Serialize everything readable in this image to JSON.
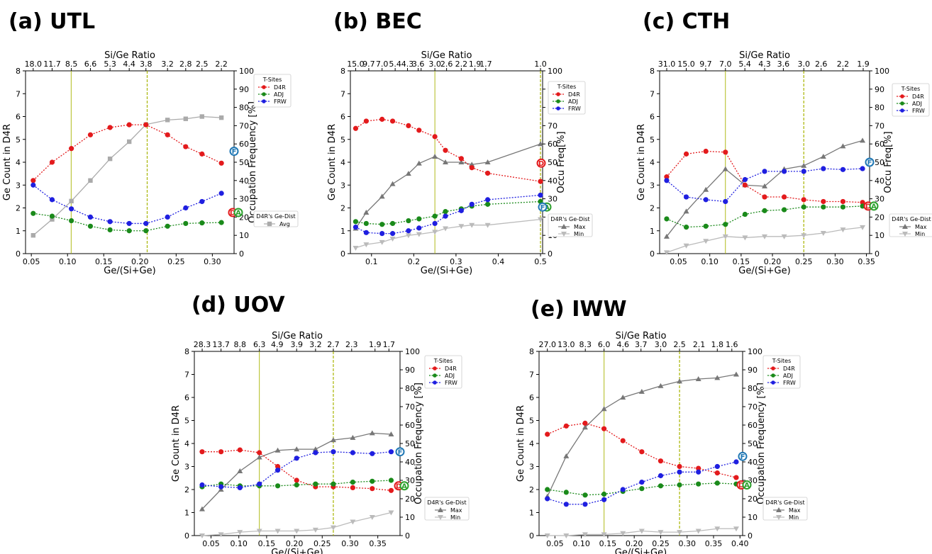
{
  "colors": {
    "D4R": "#e31a1c",
    "ADJ": "#1a8a1a",
    "FRW": "#1f1fe0",
    "Avg": "#aaaaaa",
    "Max": "#777777",
    "Min": "#bbbbbb",
    "vline": "#a8b400",
    "marker_F": "#1f77b4",
    "marker_A": "#2ca02c",
    "marker_D": "#e31a1c"
  },
  "end_markers": {
    "D": "D",
    "A": "A",
    "F": "F"
  },
  "chart_data": [
    {
      "panel": "(a)",
      "name": "UTL",
      "type": "line",
      "xlabel": "Ge/(Si+Ge)",
      "ylabel": "Ge Count in D4R",
      "y2label": "Occupation Frequency [%]",
      "toplabel": "Si/Ge Ratio",
      "xlim": [
        0.042,
        0.33
      ],
      "ylim": [
        0,
        8
      ],
      "y2lim": [
        0,
        100
      ],
      "xticks": [
        0.05,
        0.1,
        0.15,
        0.2,
        0.25,
        0.3
      ],
      "xticklabels": [
        "0.05",
        "0.10",
        "0.15",
        "0.20",
        "0.25",
        "0.30"
      ],
      "yticks": [
        0,
        1,
        2,
        3,
        4,
        5,
        6,
        7,
        8
      ],
      "y2ticks": [
        0,
        10,
        20,
        30,
        40,
        50,
        60,
        70,
        80,
        90,
        100
      ],
      "top_ticks_x": [
        0.0526,
        0.0787,
        0.1053,
        0.1316,
        0.1587,
        0.1852,
        0.2083,
        0.2381,
        0.2632,
        0.2857,
        0.3125
      ],
      "top_ticks": [
        "18.0",
        "11.7",
        "8.5",
        "6.6",
        "5.3",
        "4.4",
        "3.8",
        "3.2",
        "2.8",
        "2.5",
        "2.2"
      ],
      "vlines": [
        0.105,
        0.21
      ],
      "x": [
        0.0526,
        0.0787,
        0.1053,
        0.1316,
        0.1587,
        0.1852,
        0.2083,
        0.2381,
        0.2632,
        0.2857,
        0.3125
      ],
      "occupancy_series": [
        {
          "name": "D4R",
          "values": [
            40,
            50,
            57.5,
            65,
            69,
            70.5,
            70.5,
            65,
            58.5,
            54.5,
            49.5
          ]
        },
        {
          "name": "ADJ",
          "values": [
            22,
            20.5,
            18,
            15,
            13,
            12.5,
            12.5,
            15,
            16.5,
            16.8,
            17
          ]
        },
        {
          "name": "FRW",
          "values": [
            37.5,
            29.5,
            24.5,
            20,
            17.5,
            16.5,
            16.5,
            20,
            25,
            28.5,
            33
          ]
        }
      ],
      "count_series": [
        {
          "name": "Avg",
          "values": [
            0.8,
            1.5,
            2.3,
            3.2,
            4.15,
            4.9,
            5.65,
            5.85,
            5.9,
            6.0,
            5.95
          ]
        }
      ],
      "end_marker_values": {
        "D": 22.5,
        "A": 22.5,
        "F": 56
      },
      "legend_title": "T-Sites",
      "legend_entries": [
        "D4R",
        "ADJ",
        "FRW"
      ],
      "legend2_title": "D4R's Ge-Dist",
      "legend2_entries": [
        "Avg"
      ]
    },
    {
      "panel": "(b)",
      "name": "BEC",
      "type": "line",
      "xlabel": "Ge/(Si+Ge)",
      "ylabel": "Ge Count in D4R",
      "y2label": "Occu Freq[%]",
      "toplabel": "Si/Ge Ratio",
      "xlim": [
        0.05,
        0.505
      ],
      "ylim": [
        0,
        8
      ],
      "y2lim": [
        0,
        100
      ],
      "xticks": [
        0.1,
        0.2,
        0.3,
        0.4,
        0.5
      ],
      "xticklabels": [
        "0.1",
        "0.2",
        "0.3",
        "0.4",
        "0.5"
      ],
      "yticks": [
        0,
        1,
        2,
        3,
        4,
        5,
        6,
        7,
        8
      ],
      "y2ticks": [
        0,
        10,
        20,
        30,
        40,
        50,
        60,
        70,
        80,
        90,
        100
      ],
      "top_ticks_x": [
        0.0625,
        0.0935,
        0.125,
        0.156,
        0.1852,
        0.2105,
        0.2174,
        0.25,
        0.2777,
        0.3125,
        0.3448,
        0.3704,
        0.5
      ],
      "top_ticks": [
        "15.0",
        "9.7",
        "7.0",
        "5.4",
        "4.3",
        "3.6",
        "",
        "3.0",
        "2.6",
        "2.2",
        "1.9",
        "1.7",
        "1.0"
      ],
      "vlines": [
        0.25,
        0.5
      ],
      "x": [
        0.0625,
        0.0875,
        0.125,
        0.15,
        0.1875,
        0.2125,
        0.25,
        0.275,
        0.3125,
        0.3375,
        0.375,
        0.5
      ],
      "occupancy_series": [
        {
          "name": "D4R",
          "values": [
            68.5,
            72.5,
            73.5,
            72.5,
            70,
            67.5,
            64,
            56.5,
            52,
            47,
            44,
            39.5
          ]
        },
        {
          "name": "ADJ",
          "values": [
            17.5,
            16.5,
            16,
            16.5,
            18,
            19,
            20.5,
            23,
            24.5,
            26,
            27,
            28.5
          ]
        },
        {
          "name": "FRW",
          "values": [
            14.5,
            11.5,
            11,
            11,
            12.5,
            14,
            16.5,
            20.5,
            23.5,
            27,
            29.5,
            32
          ]
        }
      ],
      "count_series": [
        {
          "name": "Max",
          "values": [
            1.1,
            1.8,
            2.5,
            3.05,
            3.5,
            3.95,
            4.25,
            4.0,
            4.0,
            3.9,
            4.0,
            4.8
          ]
        },
        {
          "name": "Min",
          "values": [
            0.25,
            0.4,
            0.5,
            0.65,
            0.8,
            0.85,
            0.95,
            1.1,
            1.2,
            1.25,
            1.25,
            1.5
          ]
        }
      ],
      "end_marker_values": {
        "D": 49.5,
        "A": 25.5,
        "F": 25.5
      },
      "legend_title": "T-Sites",
      "legend_entries": [
        "D4R",
        "ADJ",
        "FRW"
      ],
      "legend2_title": "D4R's Ge-Dist",
      "legend2_entries": [
        "Max",
        "Min"
      ]
    },
    {
      "panel": "(c)",
      "name": "CTH",
      "type": "line",
      "xlabel": "Ge/(Si+Ge)",
      "ylabel": "Ge Count in D4R",
      "y2label": "Occu Freq[%]",
      "toplabel": "Si/Ge Ratio",
      "xlim": [
        0.02,
        0.355
      ],
      "ylim": [
        0,
        8
      ],
      "y2lim": [
        0,
        100
      ],
      "xticks": [
        0.05,
        0.1,
        0.15,
        0.2,
        0.25,
        0.3,
        0.35
      ],
      "xticklabels": [
        "0.05",
        "0.10",
        "0.15",
        "0.20",
        "0.25",
        "0.30",
        "0.35"
      ],
      "yticks": [
        0,
        1,
        2,
        3,
        4,
        5,
        6,
        7,
        8
      ],
      "y2ticks": [
        0,
        10,
        20,
        30,
        40,
        50,
        60,
        70,
        80,
        90,
        100
      ],
      "top_ticks_x": [
        0.0313,
        0.0625,
        0.0935,
        0.125,
        0.156,
        0.1875,
        0.2174,
        0.25,
        0.2777,
        0.3125,
        0.3448
      ],
      "top_ticks": [
        "31.0",
        "15.0",
        "9.7",
        "7.0",
        "5.4",
        "4.3",
        "3.6",
        "3.0",
        "2.6",
        "2.2",
        "1.9"
      ],
      "vlines": [
        0.125,
        0.25
      ],
      "x": [
        0.03125,
        0.0625,
        0.09375,
        0.125,
        0.15625,
        0.1875,
        0.21875,
        0.25,
        0.28125,
        0.3125,
        0.34375
      ],
      "occupancy_series": [
        {
          "name": "D4R",
          "values": [
            42,
            54.5,
            56,
            55.5,
            37.5,
            31,
            31,
            29.5,
            28.5,
            28.5,
            28
          ]
        },
        {
          "name": "ADJ",
          "values": [
            19,
            14.5,
            15,
            16,
            21.5,
            23.5,
            24,
            25.5,
            25.5,
            25.5,
            26
          ]
        },
        {
          "name": "FRW",
          "values": [
            40,
            31,
            29.5,
            28.5,
            40.5,
            45,
            45,
            45,
            46.5,
            46,
            46.5
          ]
        }
      ],
      "count_series": [
        {
          "name": "Max",
          "values": [
            0.75,
            1.85,
            2.8,
            3.7,
            3.0,
            2.95,
            3.7,
            3.85,
            4.25,
            4.7,
            4.95
          ]
        },
        {
          "name": "Min",
          "values": [
            0.05,
            0.35,
            0.55,
            0.75,
            0.7,
            0.75,
            0.75,
            0.8,
            0.9,
            1.05,
            1.15
          ]
        }
      ],
      "end_marker_values": {
        "D": 26,
        "A": 26,
        "F": 50
      },
      "legend_title": "T-Sites",
      "legend_entries": [
        "D4R",
        "ADJ",
        "FRW"
      ],
      "legend2_title": "D4R's Ge-Dist",
      "legend2_entries": [
        "Max",
        "Min"
      ]
    },
    {
      "panel": "(d)",
      "name": "UOV",
      "type": "line",
      "xlabel": "Ge/(Si+Ge)",
      "ylabel": "Ge Count in D4R",
      "y2label": "Occupation Frequency [%]",
      "toplabel": "Si/Ge Ratio",
      "xlim": [
        0.02,
        0.39
      ],
      "ylim": [
        0,
        8
      ],
      "y2lim": [
        0,
        100
      ],
      "xticks": [
        0.05,
        0.1,
        0.15,
        0.2,
        0.25,
        0.3,
        0.35
      ],
      "xticklabels": [
        "0.05",
        "0.10",
        "0.15",
        "0.20",
        "0.25",
        "0.30",
        "0.35"
      ],
      "yticks": [
        0,
        1,
        2,
        3,
        4,
        5,
        6,
        7,
        8
      ],
      "y2ticks": [
        0,
        10,
        20,
        30,
        40,
        50,
        60,
        70,
        80,
        90,
        100
      ],
      "top_ticks_x": [
        0.0341,
        0.068,
        0.102,
        0.137,
        0.169,
        0.204,
        0.238,
        0.27,
        0.303,
        0.345,
        0.37
      ],
      "top_ticks": [
        "28.3",
        "13.7",
        "8.8",
        "6.3",
        "4.9",
        "3.9",
        "3.2",
        "2.7",
        "2.3",
        "1.9",
        "1.7"
      ],
      "vlines": [
        0.137,
        0.27
      ],
      "x": [
        0.034,
        0.068,
        0.102,
        0.137,
        0.17,
        0.204,
        0.238,
        0.27,
        0.305,
        0.34,
        0.374
      ],
      "occupancy_series": [
        {
          "name": "D4R",
          "values": [
            45.5,
            45.5,
            46.5,
            45,
            37.5,
            30,
            26.5,
            26.5,
            26,
            25.5,
            24.5
          ]
        },
        {
          "name": "ADJ",
          "values": [
            26.5,
            28,
            27,
            27,
            27,
            27.5,
            28,
            28,
            29,
            29.5,
            30
          ]
        },
        {
          "name": "FRW",
          "values": [
            27.5,
            26.5,
            26,
            28,
            35.5,
            42,
            45,
            45.5,
            45,
            44.5,
            45.5
          ]
        }
      ],
      "count_series": [
        {
          "name": "Max",
          "values": [
            1.15,
            2.0,
            2.8,
            3.4,
            3.7,
            3.75,
            3.75,
            4.15,
            4.25,
            4.45,
            4.4
          ]
        },
        {
          "name": "Min",
          "values": [
            0.0,
            0.05,
            0.15,
            0.2,
            0.2,
            0.2,
            0.25,
            0.35,
            0.6,
            0.8,
            1.0
          ]
        }
      ],
      "end_marker_values": {
        "D": 27,
        "A": 27,
        "F": 45.5
      },
      "legend_title": "T-Sites",
      "legend_entries": [
        "D4R",
        "ADJ",
        "FRW"
      ],
      "legend2_title": "D4R's Ge-Dist",
      "legend2_entries": [
        "Max",
        "Min"
      ]
    },
    {
      "panel": "(e)",
      "name": "IWW",
      "type": "line",
      "xlabel": "Ge/(Si+Ge)",
      "ylabel": "Ge Count in D4R",
      "y2label": "Occupation Frequency [%]",
      "toplabel": "Si/Ge Ratio",
      "xlim": [
        0.02,
        0.405
      ],
      "ylim": [
        0,
        8
      ],
      "y2lim": [
        0,
        100
      ],
      "xticks": [
        0.05,
        0.1,
        0.15,
        0.2,
        0.25,
        0.3,
        0.35,
        0.4
      ],
      "xticklabels": [
        "0.05",
        "0.10",
        "0.15",
        "0.20",
        "0.25",
        "0.30",
        "0.35",
        "0.40"
      ],
      "yticks": [
        0,
        1,
        2,
        3,
        4,
        5,
        6,
        7,
        8
      ],
      "y2ticks": [
        0,
        10,
        20,
        30,
        40,
        50,
        60,
        70,
        80,
        90,
        100
      ],
      "top_ticks_x": [
        0.0357,
        0.0714,
        0.1075,
        0.1429,
        0.1786,
        0.2128,
        0.25,
        0.2857,
        0.3226,
        0.3571,
        0.3846
      ],
      "top_ticks": [
        "27.0",
        "13.0",
        "8.3",
        "6.0",
        "4.6",
        "3.7",
        "3.0",
        "2.5",
        "2.1",
        "1.8",
        "1.6"
      ],
      "vlines": [
        0.143,
        0.2857
      ],
      "x": [
        0.0357,
        0.0714,
        0.1071,
        0.1429,
        0.1786,
        0.2143,
        0.25,
        0.2857,
        0.3214,
        0.3571,
        0.3929
      ],
      "occupancy_series": [
        {
          "name": "D4R",
          "values": [
            55,
            59.5,
            61,
            58,
            51.5,
            45.5,
            40.5,
            37.5,
            36.5,
            34,
            31.5
          ]
        },
        {
          "name": "ADJ",
          "values": [
            25,
            23.5,
            22,
            22.5,
            24,
            25.5,
            27,
            27.5,
            28,
            28.5,
            28
          ]
        },
        {
          "name": "FRW",
          "values": [
            20,
            17,
            17,
            19.5,
            25,
            29,
            32.5,
            34.5,
            34.5,
            37.5,
            40
          ]
        }
      ],
      "count_series": [
        {
          "name": "Max",
          "values": [
            1.7,
            3.45,
            4.7,
            5.5,
            6.0,
            6.25,
            6.5,
            6.7,
            6.8,
            6.85,
            7.0
          ]
        },
        {
          "name": "Min",
          "values": [
            0.0,
            0.0,
            0.05,
            0.05,
            0.1,
            0.2,
            0.15,
            0.15,
            0.2,
            0.3,
            0.3
          ]
        }
      ],
      "end_marker_values": {
        "D": 27.5,
        "A": 27.5,
        "F": 43
      },
      "legend_title": "T-Sites",
      "legend_entries": [
        "D4R",
        "ADJ",
        "FRW"
      ],
      "legend2_title": "D4R's Ge-Dist",
      "legend2_entries": [
        "Max",
        "Min"
      ]
    }
  ]
}
